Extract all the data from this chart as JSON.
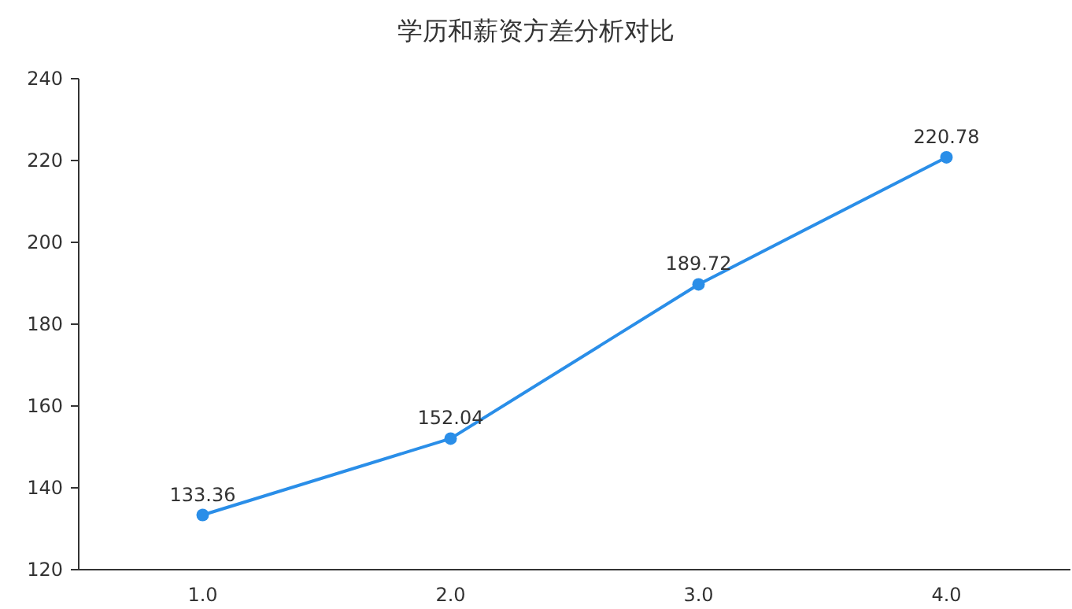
{
  "chart_data": {
    "type": "line",
    "title": "学历和薪资方差分析对比",
    "categories": [
      "1.0",
      "2.0",
      "3.0",
      "4.0"
    ],
    "series": [
      {
        "color": "#2a8ee8",
        "values": [
          133.36,
          152.04,
          189.72,
          220.78
        ]
      }
    ],
    "ylim": [
      120,
      240
    ],
    "yticks": [
      120,
      140,
      160,
      180,
      200,
      220,
      240
    ],
    "data_labels": true,
    "marker": "circle",
    "line_style": "solid"
  }
}
